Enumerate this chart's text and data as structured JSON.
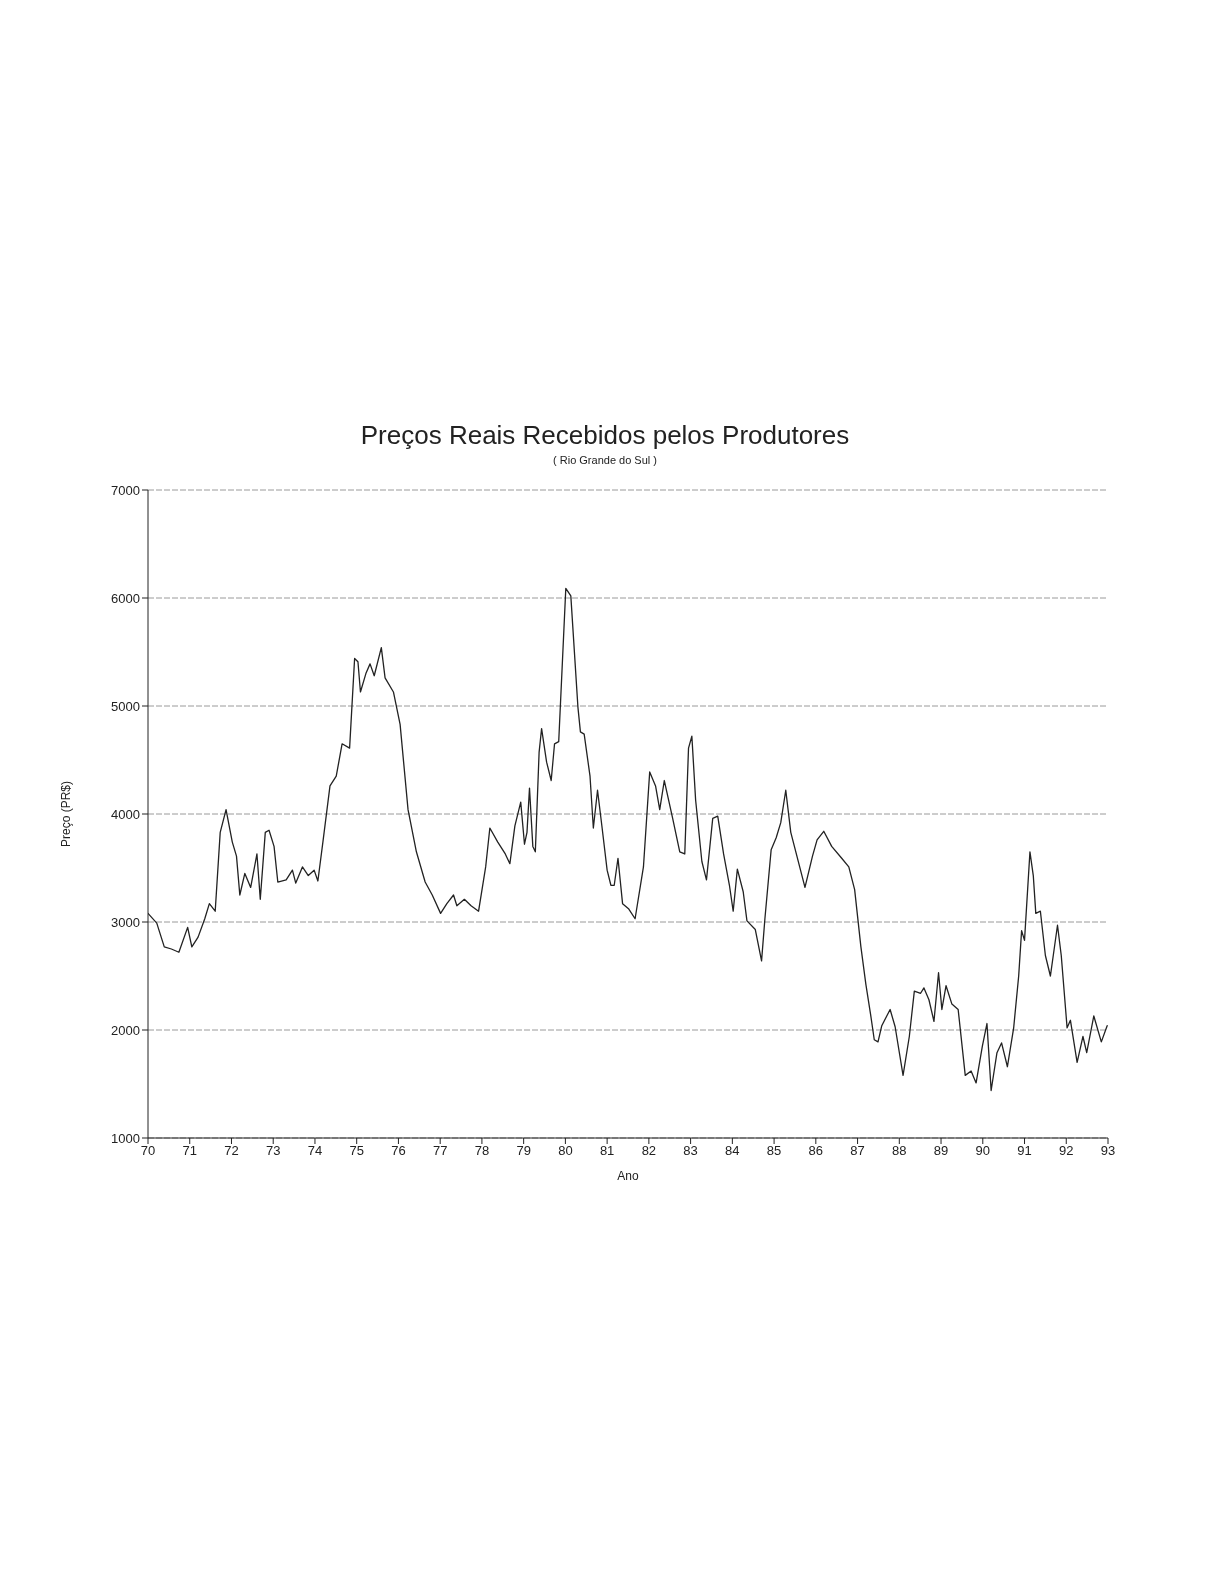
{
  "chart_data": {
    "type": "line",
    "title": "Preços Reais Recebidos pelos Produtores",
    "subtitle": "( Rio Grande do Sul )",
    "xlabel": "Ano",
    "ylabel": "Preço (PR$)",
    "xlim": [
      70,
      93
    ],
    "xticks": [
      70,
      71,
      72,
      73,
      74,
      75,
      76,
      77,
      78,
      79,
      80,
      81,
      82,
      83,
      84,
      85,
      86,
      87,
      88,
      89,
      90,
      91,
      92,
      93
    ],
    "ylim": [
      1000,
      7000
    ],
    "yticks": [
      1000,
      2000,
      3000,
      4000,
      5000,
      6000,
      7000
    ],
    "grid": "y",
    "marker": "none",
    "line_style": "solid",
    "series": [
      {
        "color": "#222222",
        "x": [
          70,
          70.21,
          70.39,
          70.56,
          70.74,
          70.95,
          71.05,
          71.2,
          71.36,
          71.47,
          71.61,
          71.73,
          71.87,
          72.02,
          72.12,
          72.2,
          72.32,
          72.46,
          72.61,
          72.69,
          72.81,
          72.9,
          73.02,
          73.11,
          73.31,
          73.46,
          73.54,
          73.7,
          73.84,
          73.98,
          74.07,
          74.19,
          74.36,
          74.51,
          74.65,
          74.83,
          74.95,
          75.03,
          75.09,
          75.22,
          75.32,
          75.42,
          75.59,
          75.68,
          75.88,
          76.04,
          76.23,
          76.43,
          76.64,
          76.81,
          77.01,
          77.16,
          77.32,
          77.4,
          77.58,
          77.74,
          77.92,
          78.09,
          78.19,
          78.38,
          78.56,
          78.67,
          78.79,
          78.93,
          79.02,
          79.08,
          79.14,
          79.22,
          79.28,
          79.37,
          79.43,
          79.55,
          79.66,
          79.74,
          79.84,
          80.01,
          80.13,
          80.3,
          80.36,
          80.45,
          80.59,
          80.67,
          80.77,
          80.88,
          81,
          81.09,
          81.17,
          81.26,
          81.37,
          81.52,
          81.67,
          81.87,
          82.02,
          82.16,
          82.26,
          82.37,
          82.57,
          82.74,
          82.86,
          82.95,
          83.03,
          83.12,
          83.27,
          83.38,
          83.53,
          83.65,
          83.79,
          83.93,
          84.02,
          84.12,
          84.26,
          84.35,
          84.55,
          84.7,
          84.78,
          84.93,
          85.05,
          85.16,
          85.28,
          85.4,
          85.74,
          85.92,
          86.03,
          86.19,
          86.38,
          86.62,
          86.79,
          86.93,
          87.08,
          87.2,
          87.31,
          87.4,
          87.49,
          87.58,
          87.78,
          87.9,
          88.09,
          88.24,
          88.36,
          88.51,
          88.59,
          88.71,
          88.83,
          88.94,
          89.02,
          89.12,
          89.26,
          89.41,
          89.58,
          89.72,
          89.84,
          89.99,
          90.1,
          90.2,
          90.34,
          90.45,
          90.59,
          90.74,
          90.86,
          90.93,
          91,
          91.13,
          91.21,
          91.27,
          91.38,
          91.5,
          91.62,
          91.79,
          91.88,
          92.02,
          92.1,
          92.26,
          92.4,
          92.49,
          92.66,
          92.84,
          92.98
        ],
        "values": [
          3080,
          2990,
          2770,
          2750,
          2720,
          2950,
          2770,
          2860,
          3030,
          3170,
          3100,
          3830,
          4040,
          3740,
          3610,
          3250,
          3450,
          3320,
          3630,
          3210,
          3830,
          3850,
          3700,
          3370,
          3390,
          3480,
          3360,
          3510,
          3430,
          3480,
          3380,
          3740,
          4260,
          4350,
          4650,
          4610,
          5440,
          5410,
          5130,
          5300,
          5390,
          5280,
          5540,
          5260,
          5130,
          4830,
          4040,
          3650,
          3370,
          3250,
          3080,
          3170,
          3250,
          3150,
          3210,
          3150,
          3100,
          3510,
          3870,
          3740,
          3630,
          3540,
          3890,
          4110,
          3720,
          3830,
          4240,
          3700,
          3650,
          4570,
          4790,
          4480,
          4310,
          4650,
          4670,
          6090,
          6020,
          4990,
          4760,
          4740,
          4350,
          3870,
          4220,
          3870,
          3480,
          3340,
          3340,
          3590,
          3170,
          3120,
          3030,
          3510,
          4390,
          4260,
          4040,
          4310,
          3960,
          3650,
          3630,
          4610,
          4720,
          4130,
          3560,
          3390,
          3960,
          3980,
          3630,
          3340,
          3100,
          3490,
          3280,
          3010,
          2930,
          2640,
          3030,
          3670,
          3780,
          3920,
          4220,
          3830,
          3320,
          3610,
          3760,
          3840,
          3700,
          3590,
          3510,
          3300,
          2770,
          2420,
          2150,
          1910,
          1890,
          2040,
          2190,
          2030,
          1580,
          1940,
          2360,
          2340,
          2390,
          2280,
          2080,
          2530,
          2190,
          2410,
          2240,
          2190,
          1580,
          1620,
          1510,
          1850,
          2060,
          1440,
          1790,
          1880,
          1660,
          2020,
          2500,
          2920,
          2830,
          3650,
          3430,
          3080,
          3100,
          2690,
          2500,
          2970,
          2690,
          2020,
          2090,
          1700,
          1940,
          1790,
          2130,
          1890,
          2040
        ]
      }
    ]
  }
}
